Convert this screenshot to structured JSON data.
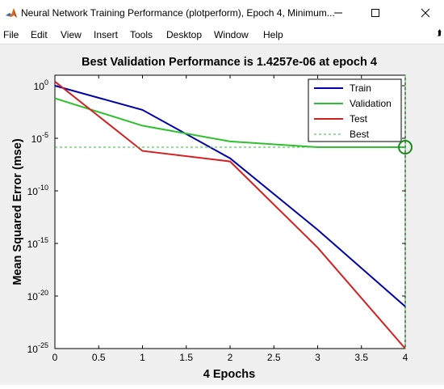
{
  "window": {
    "title": "Neural Network Training Performance (plotperform), Epoch 4, Minimum...",
    "icon": "matlab-icon"
  },
  "menu": {
    "items": [
      "File",
      "Edit",
      "View",
      "Insert",
      "Tools",
      "Desktop",
      "Window",
      "Help"
    ]
  },
  "chart_data": {
    "type": "line",
    "title": "Best Validation Performance is 1.4257e-06 at epoch 4",
    "xlabel": "4 Epochs",
    "ylabel": "Mean Squared Error  (mse)",
    "xlim": [
      0,
      4
    ],
    "ylim_log10": [
      -25,
      1
    ],
    "yscale": "log",
    "grid": false,
    "legend_position": "top-right",
    "x_ticks": [
      "0",
      "0.5",
      "1",
      "1.5",
      "2",
      "2.5",
      "3",
      "3.5",
      "4"
    ],
    "y_ticks": [
      {
        "base": "10",
        "exp": "0",
        "log10": 0
      },
      {
        "base": "10",
        "exp": "-5",
        "log10": -5
      },
      {
        "base": "10",
        "exp": "-10",
        "log10": -10
      },
      {
        "base": "10",
        "exp": "-15",
        "log10": -15
      },
      {
        "base": "10",
        "exp": "-20",
        "log10": -20
      },
      {
        "base": "10",
        "exp": "-25",
        "log10": -25
      }
    ],
    "x": [
      0,
      1,
      2,
      3,
      4
    ],
    "series": [
      {
        "name": "Train",
        "color": "#0000a8",
        "style": "solid",
        "log10_values": [
          0.0,
          -2.3,
          -6.9,
          -13.7,
          -21.0
        ]
      },
      {
        "name": "Validation",
        "color": "#2ec02e",
        "style": "solid",
        "log10_values": [
          -1.2,
          -3.8,
          -5.3,
          -5.85,
          -5.85
        ]
      },
      {
        "name": "Test",
        "color": "#d42020",
        "style": "solid",
        "log10_values": [
          0.4,
          -6.2,
          -7.2,
          -15.4,
          -25.0
        ]
      }
    ],
    "best": {
      "name": "Best",
      "color": "#2ec02e",
      "style": "dashed",
      "epoch": 4,
      "value": "1.4257e-06",
      "log10_value": -5.85
    }
  }
}
